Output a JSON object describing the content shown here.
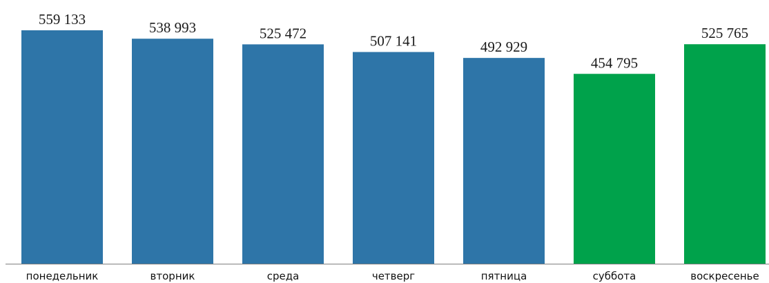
{
  "chart_data": {
    "type": "bar",
    "title": "",
    "xlabel": "",
    "ylabel": "",
    "ylim": [
      0,
      580000
    ],
    "grid": false,
    "legend": "none",
    "categories": [
      "понедельник",
      "вторник",
      "среда",
      "четверг",
      "пятница",
      "суббота",
      "воскресенье"
    ],
    "values": [
      559133,
      538993,
      525472,
      507141,
      492929,
      454795,
      525765
    ],
    "value_labels": [
      "559 133",
      "538 993",
      "525 472",
      "507 141",
      "492 929",
      "454 795",
      "525 765"
    ],
    "bar_colors": [
      "#2e75a8",
      "#2e75a8",
      "#2e75a8",
      "#2e75a8",
      "#2e75a8",
      "#00a24b",
      "#00a24b"
    ],
    "colors": {
      "weekday": "#2e75a8",
      "weekend": "#00a24b",
      "axis": "#7f7f7f"
    }
  }
}
